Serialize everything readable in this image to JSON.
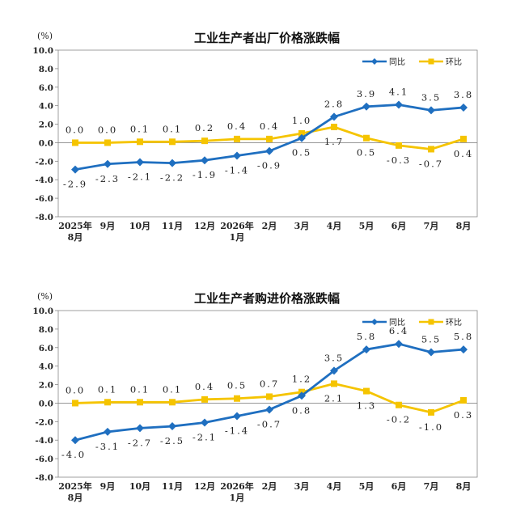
{
  "colors": {
    "yoy": "#1f6fc0",
    "mom": "#f5c400",
    "axis": "#888888"
  },
  "chart_data": [
    {
      "type": "line",
      "title": "工业生产者出厂价格涨跌幅",
      "unit": "(%)",
      "ylim": [
        -8.0,
        10.0
      ],
      "yticks": [
        "10.0",
        "8.0",
        "6.0",
        "4.0",
        "2.0",
        "0.0",
        "-2.0",
        "-4.0",
        "-6.0",
        "-8.0"
      ],
      "categories": [
        {
          "l1": "2025年",
          "l2": "8月"
        },
        {
          "l1": "9月",
          "l2": ""
        },
        {
          "l1": "10月",
          "l2": ""
        },
        {
          "l1": "11月",
          "l2": ""
        },
        {
          "l1": "12月",
          "l2": ""
        },
        {
          "l1": "2026年",
          "l2": "1月"
        },
        {
          "l1": "2月",
          "l2": ""
        },
        {
          "l1": "3月",
          "l2": ""
        },
        {
          "l1": "4月",
          "l2": ""
        },
        {
          "l1": "5月",
          "l2": ""
        },
        {
          "l1": "6月",
          "l2": ""
        },
        {
          "l1": "7月",
          "l2": ""
        },
        {
          "l1": "8月",
          "l2": ""
        }
      ],
      "legend_position": "top-right",
      "series": [
        {
          "name": "同比",
          "color_key": "yoy",
          "marker": "diamond",
          "values": [
            -2.9,
            -2.3,
            -2.1,
            -2.2,
            -1.9,
            -1.4,
            -0.9,
            0.5,
            2.8,
            3.9,
            4.1,
            3.5,
            3.8
          ],
          "labels": [
            "-2.9",
            "-2.3",
            "-2.1",
            "-2.2",
            "-1.9",
            "-1.4",
            "-0.9",
            "0.5",
            "2.8",
            "3.9",
            "4.1",
            "3.5",
            "3.8"
          ],
          "label_pos": [
            "below",
            "below",
            "below",
            "below",
            "below",
            "below",
            "below",
            "below",
            "above",
            "above",
            "above",
            "above",
            "above"
          ]
        },
        {
          "name": "环比",
          "color_key": "mom",
          "marker": "square",
          "values": [
            0.0,
            0.0,
            0.1,
            0.1,
            0.2,
            0.4,
            0.4,
            1.0,
            1.7,
            0.5,
            -0.3,
            -0.7,
            0.4
          ],
          "labels": [
            "0.0",
            "0.0",
            "0.1",
            "0.1",
            "0.2",
            "0.4",
            "0.4",
            "1.0",
            "1.7",
            "0.5",
            "-0.3",
            "-0.7",
            "0.4"
          ],
          "label_pos": [
            "above",
            "above",
            "above",
            "above",
            "above",
            "above",
            "above",
            "above",
            "below",
            "below",
            "below",
            "below",
            "below"
          ]
        }
      ]
    },
    {
      "type": "line",
      "title": "工业生产者购进价格涨跌幅",
      "unit": "(%)",
      "ylim": [
        -8.0,
        10.0
      ],
      "yticks": [
        "10.0",
        "8.0",
        "6.0",
        "4.0",
        "2.0",
        "0.0",
        "-2.0",
        "-4.0",
        "-6.0",
        "-8.0"
      ],
      "categories": [
        {
          "l1": "2025年",
          "l2": "8月"
        },
        {
          "l1": "9月",
          "l2": ""
        },
        {
          "l1": "10月",
          "l2": ""
        },
        {
          "l1": "11月",
          "l2": ""
        },
        {
          "l1": "12月",
          "l2": ""
        },
        {
          "l1": "2026年",
          "l2": "1月"
        },
        {
          "l1": "2月",
          "l2": ""
        },
        {
          "l1": "3月",
          "l2": ""
        },
        {
          "l1": "4月",
          "l2": ""
        },
        {
          "l1": "5月",
          "l2": ""
        },
        {
          "l1": "6月",
          "l2": ""
        },
        {
          "l1": "7月",
          "l2": ""
        },
        {
          "l1": "8月",
          "l2": ""
        }
      ],
      "legend_position": "top-right",
      "series": [
        {
          "name": "同比",
          "color_key": "yoy",
          "marker": "diamond",
          "values": [
            -4.0,
            -3.1,
            -2.7,
            -2.5,
            -2.1,
            -1.4,
            -0.7,
            0.8,
            3.5,
            5.8,
            6.4,
            5.5,
            5.8
          ],
          "labels": [
            "-4.0",
            "-3.1",
            "-2.7",
            "-2.5",
            "-2.1",
            "-1.4",
            "-0.7",
            "0.8",
            "3.5",
            "5.8",
            "6.4",
            "5.5",
            "5.8"
          ],
          "label_pos": [
            "left",
            "below",
            "below",
            "below",
            "below",
            "below",
            "below",
            "below",
            "above",
            "above",
            "above",
            "above",
            "above"
          ]
        },
        {
          "name": "环比",
          "color_key": "mom",
          "marker": "square",
          "values": [
            0.0,
            0.1,
            0.1,
            0.1,
            0.4,
            0.5,
            0.7,
            1.2,
            2.1,
            1.3,
            -0.2,
            -1.0,
            0.3
          ],
          "labels": [
            "0.0",
            "0.1",
            "0.1",
            "0.1",
            "0.4",
            "0.5",
            "0.7",
            "1.2",
            "2.1",
            "1.3",
            "-0.2",
            "-1.0",
            "0.3"
          ],
          "label_pos": [
            "above",
            "above",
            "above",
            "above",
            "above",
            "above",
            "above",
            "above",
            "below",
            "below",
            "below",
            "below",
            "below"
          ]
        }
      ]
    }
  ]
}
